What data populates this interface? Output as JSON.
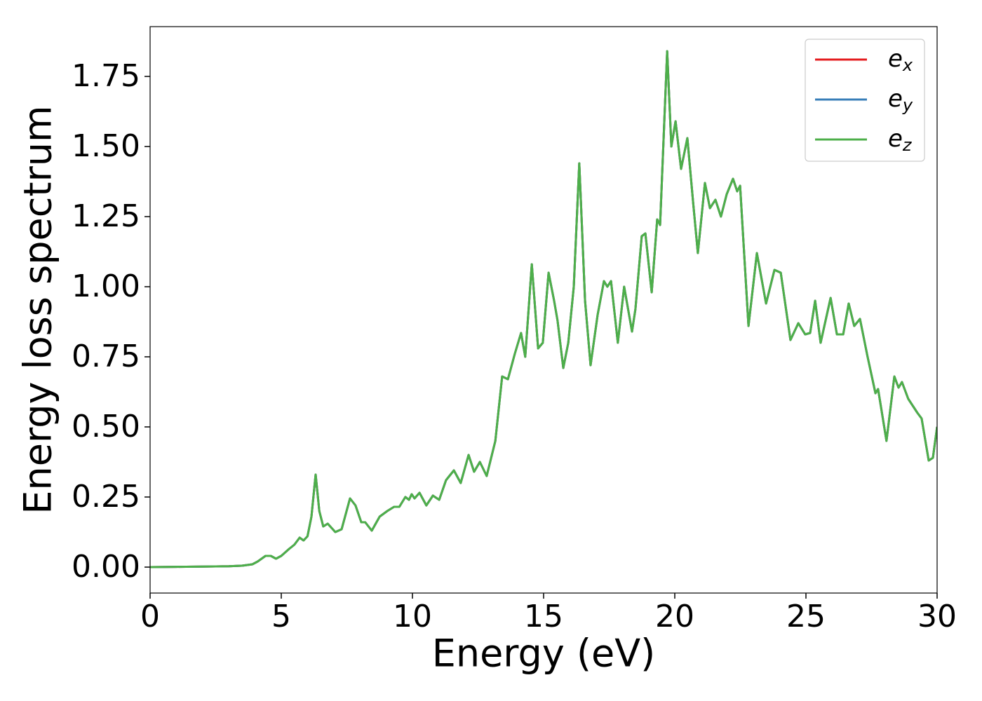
{
  "chart_data": {
    "type": "line",
    "xlabel": "Energy (eV)",
    "ylabel": "Energy loss spectrum",
    "x": [
      0,
      1,
      2,
      3,
      3.5,
      3.9,
      4.1,
      4.4,
      4.6,
      4.8,
      5.0,
      5.3,
      5.5,
      5.7,
      5.85,
      6.0,
      6.15,
      6.31,
      6.45,
      6.6,
      6.77,
      7.06,
      7.3,
      7.62,
      7.83,
      8.05,
      8.2,
      8.45,
      8.75,
      9.04,
      9.3,
      9.5,
      9.73,
      9.87,
      9.97,
      10.08,
      10.27,
      10.53,
      10.78,
      11.02,
      11.28,
      11.58,
      11.84,
      12.14,
      12.35,
      12.57,
      12.83,
      13.16,
      13.42,
      13.64,
      13.9,
      14.14,
      14.3,
      14.55,
      14.79,
      14.97,
      15.19,
      15.4,
      15.53,
      15.75,
      15.94,
      16.15,
      16.36,
      16.58,
      16.79,
      17.06,
      17.3,
      17.43,
      17.57,
      17.83,
      18.07,
      18.37,
      18.5,
      18.74,
      18.88,
      19.12,
      19.33,
      19.44,
      19.71,
      19.87,
      20.03,
      20.24,
      20.48,
      20.7,
      20.88,
      21.15,
      21.34,
      21.55,
      21.76,
      21.98,
      22.22,
      22.38,
      22.49,
      22.81,
      23.13,
      23.48,
      23.8,
      24.04,
      24.41,
      24.71,
      24.97,
      25.16,
      25.35,
      25.56,
      25.94,
      26.18,
      26.42,
      26.63,
      26.84,
      27.06,
      27.35,
      27.65,
      27.75,
      28.07,
      28.37,
      28.53,
      28.66,
      28.9,
      29.25,
      29.41,
      29.68,
      29.84,
      30
    ],
    "series": [
      {
        "name": "ex",
        "color": "#e41a1c",
        "values": [
          0,
          0.001,
          0.002,
          0.003,
          0.005,
          0.01,
          0.02,
          0.04,
          0.04,
          0.03,
          0.04,
          0.065,
          0.08,
          0.105,
          0.095,
          0.11,
          0.18,
          0.33,
          0.2,
          0.145,
          0.155,
          0.125,
          0.135,
          0.245,
          0.22,
          0.16,
          0.16,
          0.13,
          0.18,
          0.2,
          0.215,
          0.215,
          0.25,
          0.24,
          0.26,
          0.245,
          0.265,
          0.22,
          0.255,
          0.24,
          0.31,
          0.345,
          0.3,
          0.4,
          0.34,
          0.375,
          0.325,
          0.45,
          0.68,
          0.67,
          0.76,
          0.835,
          0.75,
          1.08,
          0.78,
          0.8,
          1.05,
          0.95,
          0.88,
          0.71,
          0.8,
          1.0,
          1.44,
          0.95,
          0.72,
          0.9,
          1.02,
          1.0,
          1.02,
          0.8,
          1.0,
          0.84,
          0.92,
          1.18,
          1.19,
          0.98,
          1.24,
          1.22,
          1.84,
          1.5,
          1.59,
          1.42,
          1.53,
          1.3,
          1.12,
          1.37,
          1.28,
          1.31,
          1.25,
          1.33,
          1.385,
          1.34,
          1.36,
          0.86,
          1.12,
          0.94,
          1.06,
          1.05,
          0.81,
          0.87,
          0.83,
          0.835,
          0.95,
          0.8,
          0.96,
          0.83,
          0.83,
          0.94,
          0.86,
          0.885,
          0.75,
          0.62,
          0.635,
          0.45,
          0.68,
          0.64,
          0.66,
          0.6,
          0.55,
          0.53,
          0.38,
          0.39,
          0.5
        ]
      },
      {
        "name": "ey",
        "color": "#377eb8",
        "values": [
          0,
          0.001,
          0.002,
          0.003,
          0.005,
          0.01,
          0.02,
          0.04,
          0.04,
          0.03,
          0.04,
          0.065,
          0.08,
          0.105,
          0.095,
          0.11,
          0.18,
          0.33,
          0.2,
          0.145,
          0.155,
          0.125,
          0.135,
          0.245,
          0.22,
          0.16,
          0.16,
          0.13,
          0.18,
          0.2,
          0.215,
          0.215,
          0.25,
          0.24,
          0.26,
          0.245,
          0.265,
          0.22,
          0.255,
          0.24,
          0.31,
          0.345,
          0.3,
          0.4,
          0.34,
          0.375,
          0.325,
          0.45,
          0.68,
          0.67,
          0.76,
          0.835,
          0.75,
          1.08,
          0.78,
          0.8,
          1.05,
          0.95,
          0.88,
          0.71,
          0.8,
          1.0,
          1.44,
          0.95,
          0.72,
          0.9,
          1.02,
          1.0,
          1.02,
          0.8,
          1.0,
          0.84,
          0.92,
          1.18,
          1.19,
          0.98,
          1.24,
          1.22,
          1.84,
          1.5,
          1.59,
          1.42,
          1.53,
          1.3,
          1.12,
          1.37,
          1.28,
          1.31,
          1.25,
          1.33,
          1.385,
          1.34,
          1.36,
          0.86,
          1.12,
          0.94,
          1.06,
          1.05,
          0.81,
          0.87,
          0.83,
          0.835,
          0.95,
          0.8,
          0.96,
          0.83,
          0.83,
          0.94,
          0.86,
          0.885,
          0.75,
          0.62,
          0.635,
          0.45,
          0.68,
          0.64,
          0.66,
          0.6,
          0.55,
          0.53,
          0.38,
          0.39,
          0.5
        ]
      },
      {
        "name": "ez",
        "color": "#4daf4a",
        "values": [
          0,
          0.001,
          0.002,
          0.003,
          0.005,
          0.01,
          0.02,
          0.04,
          0.04,
          0.03,
          0.04,
          0.065,
          0.08,
          0.105,
          0.095,
          0.11,
          0.18,
          0.33,
          0.2,
          0.145,
          0.155,
          0.125,
          0.135,
          0.245,
          0.22,
          0.16,
          0.16,
          0.13,
          0.18,
          0.2,
          0.215,
          0.215,
          0.25,
          0.24,
          0.26,
          0.245,
          0.265,
          0.22,
          0.255,
          0.24,
          0.31,
          0.345,
          0.3,
          0.4,
          0.34,
          0.375,
          0.325,
          0.45,
          0.68,
          0.67,
          0.76,
          0.835,
          0.75,
          1.08,
          0.78,
          0.8,
          1.05,
          0.95,
          0.88,
          0.71,
          0.8,
          1.0,
          1.44,
          0.95,
          0.72,
          0.9,
          1.02,
          1.0,
          1.02,
          0.8,
          1.0,
          0.84,
          0.92,
          1.18,
          1.19,
          0.98,
          1.24,
          1.22,
          1.84,
          1.5,
          1.59,
          1.42,
          1.53,
          1.3,
          1.12,
          1.37,
          1.28,
          1.31,
          1.25,
          1.33,
          1.385,
          1.34,
          1.36,
          0.86,
          1.12,
          0.94,
          1.06,
          1.05,
          0.81,
          0.87,
          0.83,
          0.835,
          0.95,
          0.8,
          0.96,
          0.83,
          0.83,
          0.94,
          0.86,
          0.885,
          0.75,
          0.62,
          0.635,
          0.45,
          0.68,
          0.64,
          0.66,
          0.6,
          0.55,
          0.53,
          0.38,
          0.39,
          0.5
        ]
      }
    ],
    "xlim": [
      0,
      30
    ],
    "xticks": [
      0,
      5,
      10,
      15,
      20,
      25,
      30
    ],
    "ylim": [
      -0.0925,
      1.9275
    ],
    "yticks": [
      {
        "value": 0,
        "label": "0.00"
      },
      0.25,
      {
        "value": 0.5,
        "label": "0.50"
      },
      0.75,
      {
        "value": 1,
        "label": "1.00"
      },
      1.25,
      {
        "value": 1.5,
        "label": "1.50"
      },
      1.75
    ],
    "legend": "upper right",
    "grid": false
  }
}
